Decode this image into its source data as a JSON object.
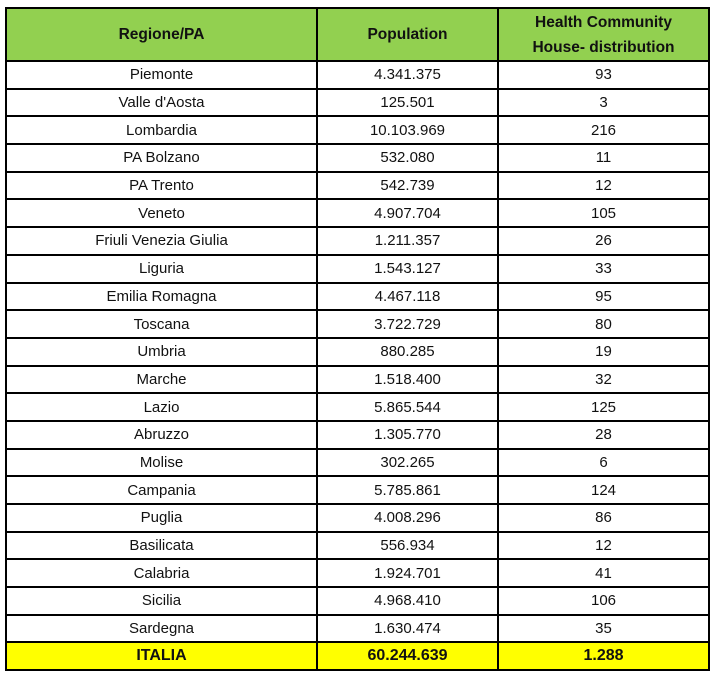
{
  "table": {
    "headers": [
      "Regione/PA",
      "Population",
      "Health Community House- distribution"
    ],
    "header_lines": [
      "Health Community",
      "House- distribution"
    ],
    "rows": [
      [
        "Piemonte",
        "4.341.375",
        "93"
      ],
      [
        "Valle d'Aosta",
        "125.501",
        "3"
      ],
      [
        "Lombardia",
        "10.103.969",
        "216"
      ],
      [
        "PA Bolzano",
        "532.080",
        "11"
      ],
      [
        "PA Trento",
        "542.739",
        "12"
      ],
      [
        "Veneto",
        "4.907.704",
        "105"
      ],
      [
        "Friuli Venezia Giulia",
        "1.211.357",
        "26"
      ],
      [
        "Liguria",
        "1.543.127",
        "33"
      ],
      [
        "Emilia Romagna",
        "4.467.118",
        "95"
      ],
      [
        "Toscana",
        "3.722.729",
        "80"
      ],
      [
        "Umbria",
        "880.285",
        "19"
      ],
      [
        "Marche",
        "1.518.400",
        "32"
      ],
      [
        "Lazio",
        "5.865.544",
        "125"
      ],
      [
        "Abruzzo",
        "1.305.770",
        "28"
      ],
      [
        "Molise",
        "302.265",
        "6"
      ],
      [
        "Campania",
        "5.785.861",
        "124"
      ],
      [
        "Puglia",
        "4.008.296",
        "86"
      ],
      [
        "Basilicata",
        "556.934",
        "12"
      ],
      [
        "Calabria",
        "1.924.701",
        "41"
      ],
      [
        "Sicilia",
        "4.968.410",
        "106"
      ],
      [
        "Sardegna",
        "1.630.474",
        "35"
      ]
    ],
    "total": [
      "ITALIA",
      "60.244.639",
      "1.288"
    ]
  },
  "colors": {
    "header_bg": "#92d050",
    "total_bg": "#ffff00"
  }
}
